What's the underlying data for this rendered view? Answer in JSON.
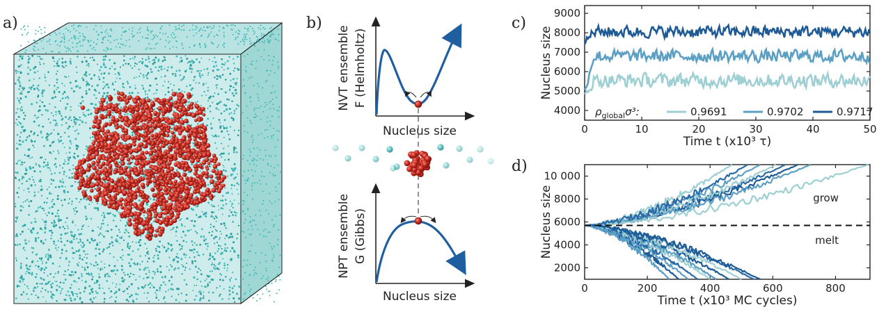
{
  "panels": {
    "a": "a)",
    "b": "b)",
    "c": "c)",
    "d": "d)"
  },
  "panel_b": {
    "top": {
      "ylabel_line1": "NVT ensemble",
      "ylabel_line2": "F (Helmholtz)",
      "xlabel": "Nucleus size"
    },
    "bottom": {
      "ylabel_line1": "NPT ensemble",
      "ylabel_line2": "G (Gibbs)",
      "xlabel": "Nucleus size"
    }
  },
  "colors": {
    "light": "#9ecfd3",
    "mid": "#5b9fc4",
    "dark": "#1e5b96",
    "curve": "#1f5fa0",
    "particle_outer": "#3fb7b5",
    "nucleus": "#cc2a1f"
  },
  "chart_data": [
    {
      "type": "line",
      "panel": "c",
      "xlabel": "Time  t  (x10³ τ)",
      "ylabel": "Nucleus size",
      "xlim": [
        0,
        50
      ],
      "ylim": [
        3500,
        9400
      ],
      "xticks": [
        "0",
        "10",
        "20",
        "30",
        "40",
        "50"
      ],
      "yticks": [
        "4000",
        "5000",
        "6000",
        "7000",
        "8000",
        "9000"
      ],
      "legend_title": "ρgloba lσ³:",
      "legend_prefix": "ρ",
      "legend_sub": "global",
      "legend_suffix": "σ³:",
      "series": [
        {
          "name": "0.9691",
          "color": "#9ecfd3",
          "start": 4800,
          "mean": 5550,
          "amp": 330
        },
        {
          "name": "0.9702",
          "color": "#5b9fc4",
          "start": 5000,
          "mean": 6800,
          "amp": 300
        },
        {
          "name": "0.9717",
          "color": "#1e5b96",
          "start": 7500,
          "mean": 8050,
          "amp": 280
        }
      ]
    },
    {
      "type": "line",
      "panel": "d",
      "xlabel": "Time  t  (x10³ MC cycles)",
      "ylabel": "Nucleus size",
      "xlim": [
        0,
        910
      ],
      "ylim": [
        1000,
        11000
      ],
      "xticks": [
        "0",
        "200",
        "400",
        "600",
        "800"
      ],
      "yticks": [
        "2000",
        "4000",
        "6000",
        "8000",
        "10 000"
      ],
      "reference_y": 5700,
      "annotations": {
        "grow": "grow",
        "melt": "melt"
      },
      "trajectories": [
        {
          "end_x": 560,
          "end_y": 11000,
          "color": "#5b9fc4"
        },
        {
          "end_x": 640,
          "end_y": 11000,
          "color": "#2a6aa6"
        },
        {
          "end_x": 680,
          "end_y": 11000,
          "color": "#1e5b96"
        },
        {
          "end_x": 610,
          "end_y": 11000,
          "color": "#9ecfd3"
        },
        {
          "end_x": 470,
          "end_y": 11000,
          "color": "#9ecfd3"
        },
        {
          "end_x": 720,
          "end_y": 11000,
          "color": "#5b9fc4"
        },
        {
          "end_x": 905,
          "end_y": 11000,
          "color": "#9ecfd3"
        },
        {
          "end_x": 520,
          "end_y": 11000,
          "color": "#2a6aa6"
        },
        {
          "end_x": 300,
          "end_y": 1000,
          "color": "#1e5b96"
        },
        {
          "end_x": 330,
          "end_y": 1000,
          "color": "#5b9fc4"
        },
        {
          "end_x": 360,
          "end_y": 1000,
          "color": "#2a6aa6"
        },
        {
          "end_x": 400,
          "end_y": 1000,
          "color": "#9ecfd3"
        },
        {
          "end_x": 420,
          "end_y": 1000,
          "color": "#5b9fc4"
        },
        {
          "end_x": 460,
          "end_y": 1000,
          "color": "#1e5b96"
        },
        {
          "end_x": 500,
          "end_y": 1000,
          "color": "#9ecfd3"
        },
        {
          "end_x": 540,
          "end_y": 1000,
          "color": "#2a6aa6"
        },
        {
          "end_x": 560,
          "end_y": 1000,
          "color": "#1e5b96"
        },
        {
          "end_x": 270,
          "end_y": 1000,
          "color": "#5b9fc4"
        }
      ]
    }
  ]
}
